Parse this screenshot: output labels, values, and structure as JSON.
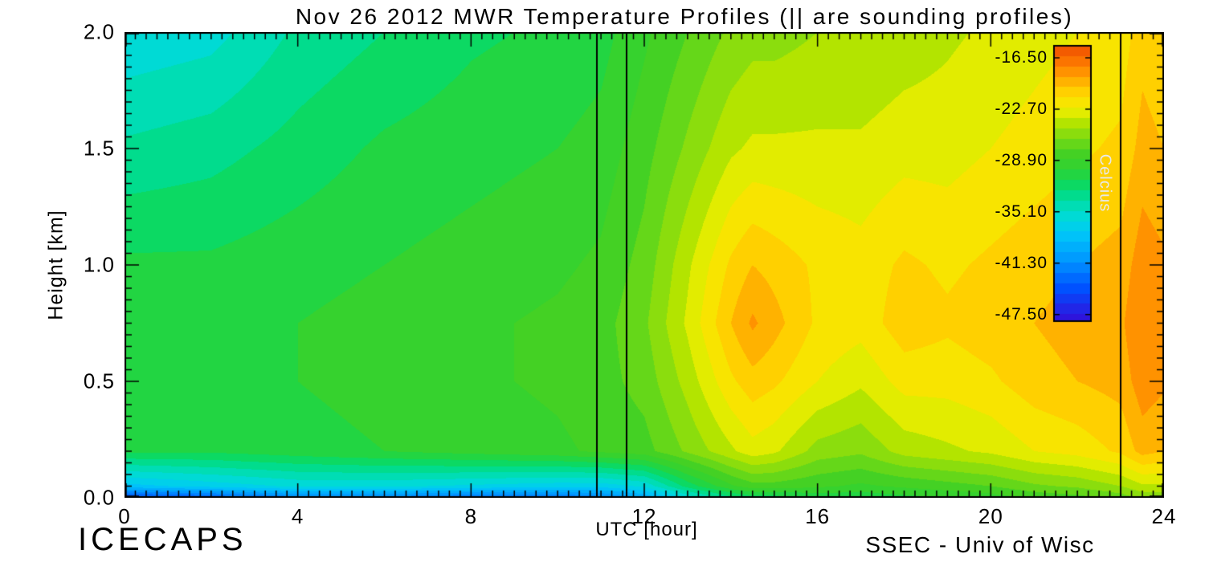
{
  "title": "Nov 26 2012 MWR Temperature Profiles (|| are sounding profiles)",
  "footer": {
    "left": "ICECAPS",
    "right": "SSEC - Univ of Wisc"
  },
  "chart_data": {
    "type": "heatmap",
    "title": "Nov 26 2012 MWR Temperature Profiles (|| are sounding profiles)",
    "xlabel": "UTC [hour]",
    "ylabel": "Height [km]",
    "xlim": [
      0,
      24
    ],
    "ylim": [
      0,
      2
    ],
    "x_tick_values": [
      0,
      4,
      8,
      12,
      16,
      20,
      24
    ],
    "x_tick_labels": [
      "0",
      "4",
      "8",
      "12",
      "16",
      "20",
      "24"
    ],
    "x_minor_step": 0.25,
    "y_tick_values": [
      0,
      0.5,
      1,
      1.5,
      2
    ],
    "y_tick_labels": [
      "0.0",
      "0.5",
      "1.0",
      "1.5",
      "2.0"
    ],
    "y_minor_step": 0.05,
    "grid": false,
    "sounding_profile_times": [
      10.9,
      11.6,
      23.0
    ],
    "x": [
      0,
      2,
      4,
      6,
      8,
      10,
      11,
      12,
      13,
      14,
      14.5,
      15,
      16,
      17,
      18,
      19,
      20,
      21,
      22,
      23,
      23.5,
      24
    ],
    "y": [
      0,
      0.05,
      0.2,
      0.5,
      0.75,
      1.0,
      1.5,
      2.0
    ],
    "values_units": "Celcius",
    "values": [
      [
        -45,
        -44,
        -42,
        -42,
        -43,
        -43,
        -42,
        -40,
        -36,
        -33,
        -32,
        -32,
        -31,
        -31,
        -30.5,
        -30,
        -29.5,
        -28.5,
        -28,
        -27,
        -26,
        -26
      ],
      [
        -38,
        -37,
        -36,
        -36,
        -36.5,
        -37,
        -37,
        -36,
        -32,
        -29,
        -28,
        -28,
        -28.5,
        -29,
        -28.5,
        -28,
        -27.5,
        -26.5,
        -26,
        -25,
        -24,
        -24
      ],
      [
        -31,
        -31,
        -30.5,
        -30,
        -29.5,
        -29,
        -28.5,
        -28,
        -26,
        -24,
        -23,
        -23.5,
        -25.5,
        -26,
        -24.5,
        -24,
        -23.5,
        -22.5,
        -22,
        -21,
        -19.5,
        -20
      ],
      [
        -30.5,
        -30.5,
        -30,
        -29.5,
        -29,
        -28.5,
        -28,
        -27,
        -24.5,
        -21.5,
        -20.5,
        -21,
        -22.5,
        -23.5,
        -22,
        -22,
        -21.5,
        -20.5,
        -20,
        -19.5,
        -18,
        -18.5
      ],
      [
        -30.5,
        -30.5,
        -30,
        -29.5,
        -29,
        -28.5,
        -28,
        -26.5,
        -23.5,
        -20,
        -18.5,
        -19.5,
        -21.5,
        -22,
        -20.5,
        -21,
        -20.5,
        -20,
        -19.5,
        -19,
        -17.5,
        -18
      ],
      [
        -31,
        -31,
        -30.5,
        -30,
        -29.5,
        -29,
        -28.5,
        -27,
        -24,
        -21,
        -20,
        -20.5,
        -21.5,
        -22,
        -21,
        -21.5,
        -21,
        -20.5,
        -20,
        -19.5,
        -18,
        -18.5
      ],
      [
        -33.5,
        -33,
        -32,
        -31,
        -30.5,
        -30,
        -29.5,
        -28,
        -26,
        -24,
        -23.5,
        -23.5,
        -23.5,
        -23.5,
        -23,
        -23,
        -22.5,
        -22,
        -21.5,
        -21,
        -19.5,
        -20
      ],
      [
        -36,
        -35.5,
        -33.5,
        -32.5,
        -31.5,
        -31,
        -30.5,
        -29,
        -27.5,
        -26,
        -25.5,
        -25.5,
        -25,
        -25,
        -24.5,
        -24,
        -23.5,
        -23,
        -22.5,
        -22,
        -20.5,
        -21
      ]
    ],
    "scale": {
      "vmin": -50,
      "vmax": -15,
      "band_step": 1.25
    },
    "colorbar": {
      "label": "Celcius",
      "label_color": "#e8e8e8",
      "tick_labels": [
        "-16.50",
        "-22.70",
        "-28.90",
        "-35.10",
        "-41.30",
        "-47.50"
      ],
      "tick_values": [
        -16.5,
        -22.7,
        -28.9,
        -35.1,
        -41.3,
        -47.5
      ],
      "vmin": -48.3,
      "vmax": -15.05,
      "position": "inside-right"
    },
    "colormap": {
      "name": "rainbow",
      "stops": [
        [
          0.0,
          "#3a00d0"
        ],
        [
          0.07,
          "#2a1ae0"
        ],
        [
          0.16,
          "#0050ff"
        ],
        [
          0.26,
          "#0098ff"
        ],
        [
          0.35,
          "#00c8f8"
        ],
        [
          0.42,
          "#00ddd0"
        ],
        [
          0.48,
          "#00dc90"
        ],
        [
          0.53,
          "#10d855"
        ],
        [
          0.57,
          "#2ed334"
        ],
        [
          0.63,
          "#46d122"
        ],
        [
          0.68,
          "#79da14"
        ],
        [
          0.73,
          "#b0e400"
        ],
        [
          0.78,
          "#f2ee00"
        ],
        [
          0.83,
          "#ffd800"
        ],
        [
          0.88,
          "#ffae00"
        ],
        [
          0.93,
          "#ff8000"
        ],
        [
          1.0,
          "#ef4e00"
        ]
      ]
    },
    "axis_color": "#000000",
    "background_color": "#ffffff"
  }
}
